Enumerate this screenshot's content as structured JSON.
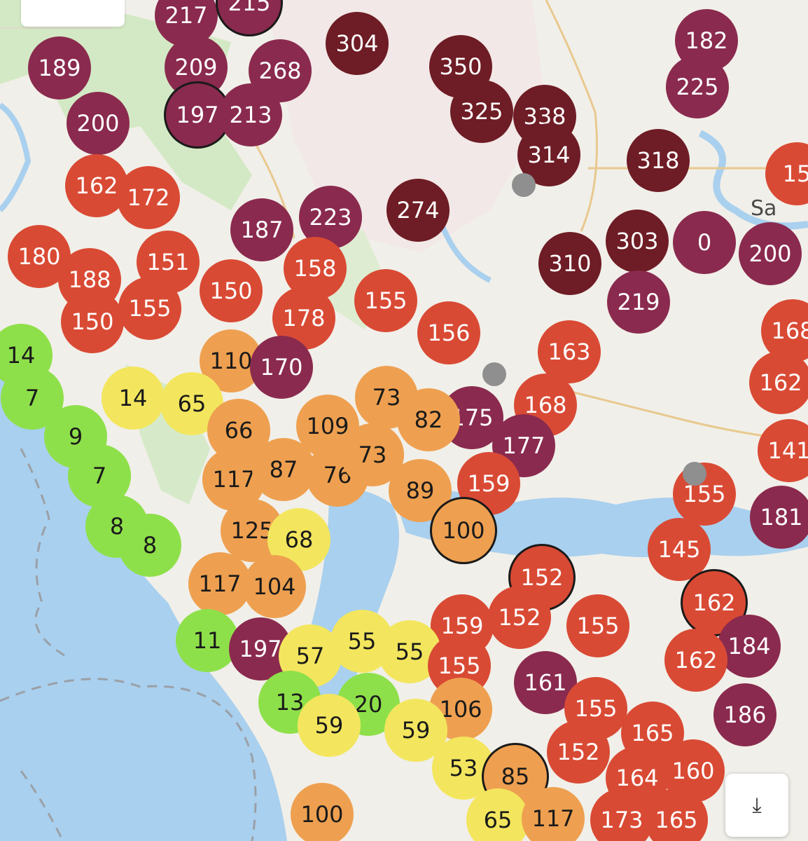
{
  "map": {
    "place_labels": [
      {
        "id": "sacramento",
        "text": "Sa"
      }
    ],
    "aqi_colors": {
      "good": "#8ee04a",
      "moderate": "#f3e65e",
      "usg": "#eea050",
      "unhealthy": "#d94a34",
      "very_unhealthy": "#8a2a4e",
      "hazardous": "#6e1c25"
    },
    "sensors": [
      {
        "value": "217",
        "level": "very_unhealthy"
      },
      {
        "value": "215",
        "level": "very_unhealthy"
      },
      {
        "value": "304",
        "level": "hazardous"
      },
      {
        "value": "350",
        "level": "hazardous"
      },
      {
        "value": "182",
        "level": "very_unhealthy"
      },
      {
        "value": "189",
        "level": "very_unhealthy"
      },
      {
        "value": "209",
        "level": "very_unhealthy"
      },
      {
        "value": "268",
        "level": "very_unhealthy"
      },
      {
        "value": "225",
        "level": "very_unhealthy"
      },
      {
        "value": "325",
        "level": "hazardous"
      },
      {
        "value": "338",
        "level": "hazardous"
      },
      {
        "value": "200",
        "level": "very_unhealthy"
      },
      {
        "value": "197",
        "level": "very_unhealthy"
      },
      {
        "value": "213",
        "level": "very_unhealthy"
      },
      {
        "value": "314",
        "level": "hazardous"
      },
      {
        "value": "318",
        "level": "hazardous"
      },
      {
        "value": "15",
        "level": "unhealthy"
      },
      {
        "value": "162",
        "level": "unhealthy"
      },
      {
        "value": "172",
        "level": "unhealthy"
      },
      {
        "value": "187",
        "level": "very_unhealthy"
      },
      {
        "value": "223",
        "level": "very_unhealthy"
      },
      {
        "value": "274",
        "level": "hazardous"
      },
      {
        "value": "180",
        "level": "unhealthy"
      },
      {
        "value": "151",
        "level": "unhealthy"
      },
      {
        "value": "303",
        "level": "hazardous"
      },
      {
        "value": "0",
        "level": "very_unhealthy"
      },
      {
        "value": "200",
        "level": "very_unhealthy"
      },
      {
        "value": "188",
        "level": "unhealthy"
      },
      {
        "value": "158",
        "level": "unhealthy"
      },
      {
        "value": "310",
        "level": "hazardous"
      },
      {
        "value": "150",
        "level": "unhealthy"
      },
      {
        "value": "155",
        "level": "unhealthy"
      },
      {
        "value": "219",
        "level": "very_unhealthy"
      },
      {
        "value": "150",
        "level": "unhealthy"
      },
      {
        "value": "155",
        "level": "unhealthy"
      },
      {
        "value": "178",
        "level": "unhealthy"
      },
      {
        "value": "156",
        "level": "unhealthy"
      },
      {
        "value": "168",
        "level": "unhealthy"
      },
      {
        "value": "14",
        "level": "good"
      },
      {
        "value": "110",
        "level": "usg"
      },
      {
        "value": "170",
        "level": "very_unhealthy"
      },
      {
        "value": "163",
        "level": "unhealthy"
      },
      {
        "value": "162",
        "level": "unhealthy"
      },
      {
        "value": "7",
        "level": "good"
      },
      {
        "value": "14",
        "level": "moderate"
      },
      {
        "value": "65",
        "level": "moderate"
      },
      {
        "value": "73",
        "level": "usg"
      },
      {
        "value": "175",
        "level": "very_unhealthy"
      },
      {
        "value": "168",
        "level": "unhealthy"
      },
      {
        "value": "82",
        "level": "usg"
      },
      {
        "value": "9",
        "level": "good"
      },
      {
        "value": "66",
        "level": "usg"
      },
      {
        "value": "109",
        "level": "usg"
      },
      {
        "value": "177",
        "level": "very_unhealthy"
      },
      {
        "value": "141",
        "level": "unhealthy"
      },
      {
        "value": "7",
        "level": "good"
      },
      {
        "value": "117",
        "level": "usg"
      },
      {
        "value": "87",
        "level": "usg"
      },
      {
        "value": "76",
        "level": "usg"
      },
      {
        "value": "73",
        "level": "usg"
      },
      {
        "value": "159",
        "level": "unhealthy"
      },
      {
        "value": "155",
        "level": "unhealthy"
      },
      {
        "value": "181",
        "level": "very_unhealthy"
      },
      {
        "value": "89",
        "level": "usg"
      },
      {
        "value": "8",
        "level": "good"
      },
      {
        "value": "125",
        "level": "usg"
      },
      {
        "value": "68",
        "level": "moderate"
      },
      {
        "value": "100",
        "level": "usg"
      },
      {
        "value": "8",
        "level": "good"
      },
      {
        "value": "145",
        "level": "unhealthy"
      },
      {
        "value": "152",
        "level": "unhealthy"
      },
      {
        "value": "117",
        "level": "usg"
      },
      {
        "value": "104",
        "level": "usg"
      },
      {
        "value": "162",
        "level": "unhealthy"
      },
      {
        "value": "159",
        "level": "unhealthy"
      },
      {
        "value": "152",
        "level": "unhealthy"
      },
      {
        "value": "155",
        "level": "unhealthy"
      },
      {
        "value": "11",
        "level": "good"
      },
      {
        "value": "197",
        "level": "very_unhealthy"
      },
      {
        "value": "57",
        "level": "moderate"
      },
      {
        "value": "55",
        "level": "moderate"
      },
      {
        "value": "55",
        "level": "moderate"
      },
      {
        "value": "184",
        "level": "very_unhealthy"
      },
      {
        "value": "155",
        "level": "unhealthy"
      },
      {
        "value": "162",
        "level": "unhealthy"
      },
      {
        "value": "161",
        "level": "very_unhealthy"
      },
      {
        "value": "13",
        "level": "good"
      },
      {
        "value": "20",
        "level": "good"
      },
      {
        "value": "106",
        "level": "usg"
      },
      {
        "value": "155",
        "level": "unhealthy"
      },
      {
        "value": "186",
        "level": "very_unhealthy"
      },
      {
        "value": "59",
        "level": "moderate"
      },
      {
        "value": "59",
        "level": "moderate"
      },
      {
        "value": "165",
        "level": "unhealthy"
      },
      {
        "value": "152",
        "level": "unhealthy"
      },
      {
        "value": "53",
        "level": "moderate"
      },
      {
        "value": "85",
        "level": "usg"
      },
      {
        "value": "164",
        "level": "unhealthy"
      },
      {
        "value": "160",
        "level": "unhealthy"
      },
      {
        "value": "100",
        "level": "usg"
      },
      {
        "value": "65",
        "level": "moderate"
      },
      {
        "value": "117",
        "level": "usg"
      },
      {
        "value": "173",
        "level": "unhealthy"
      },
      {
        "value": "165",
        "level": "unhealthy"
      }
    ]
  },
  "download_button": {
    "icon": "download-arrow-icon",
    "glyph": "⤓"
  }
}
